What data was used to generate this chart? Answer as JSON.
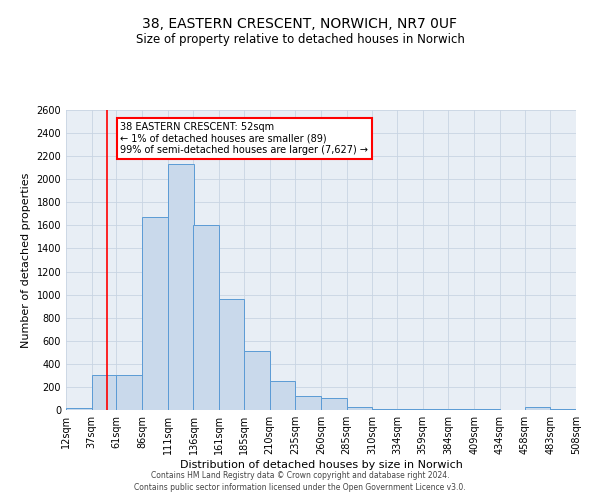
{
  "title": "38, EASTERN CRESCENT, NORWICH, NR7 0UF",
  "subtitle": "Size of property relative to detached houses in Norwich",
  "xlabel": "Distribution of detached houses by size in Norwich",
  "ylabel": "Number of detached properties",
  "bin_edges": [
    12,
    37,
    61,
    86,
    111,
    136,
    161,
    185,
    210,
    235,
    260,
    285,
    310,
    334,
    359,
    384,
    409,
    434,
    458,
    483,
    508
  ],
  "bin_heights": [
    20,
    300,
    300,
    1675,
    2130,
    1600,
    960,
    510,
    250,
    120,
    100,
    30,
    10,
    5,
    5,
    5,
    5,
    0,
    30,
    10,
    15
  ],
  "bar_facecolor": "#c9d9eb",
  "bar_edgecolor": "#5b9bd5",
  "grid_color": "#c8d4e3",
  "background_color": "#e8eef5",
  "vline_x": 52,
  "vline_color": "red",
  "annotation_box_text": "38 EASTERN CRESCENT: 52sqm\n← 1% of detached houses are smaller (89)\n99% of semi-detached houses are larger (7,627) →",
  "annotation_box_color": "red",
  "annotation_box_facecolor": "white",
  "ylim": [
    0,
    2600
  ],
  "ytick_interval": 200,
  "footer_line1": "Contains HM Land Registry data © Crown copyright and database right 2024.",
  "footer_line2": "Contains public sector information licensed under the Open Government Licence v3.0.",
  "tick_labels": [
    "12sqm",
    "37sqm",
    "61sqm",
    "86sqm",
    "111sqm",
    "136sqm",
    "161sqm",
    "185sqm",
    "210sqm",
    "235sqm",
    "260sqm",
    "285sqm",
    "310sqm",
    "334sqm",
    "359sqm",
    "384sqm",
    "409sqm",
    "434sqm",
    "458sqm",
    "483sqm",
    "508sqm"
  ],
  "title_fontsize": 10,
  "subtitle_fontsize": 8.5,
  "axis_label_fontsize": 8,
  "tick_fontsize": 7,
  "footer_fontsize": 5.5
}
